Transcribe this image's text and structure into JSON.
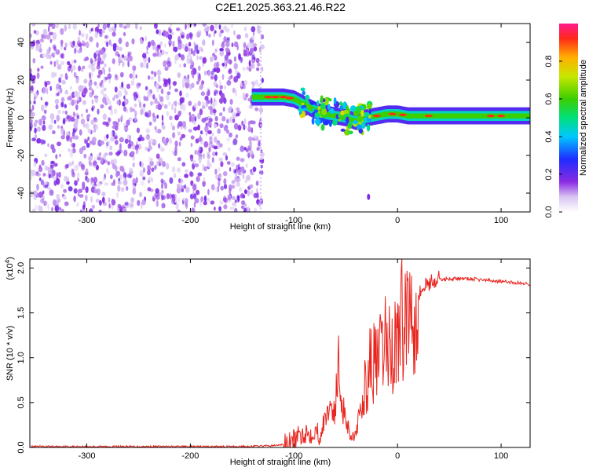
{
  "title": "C2E1.2025.363.21.46.R22",
  "chart_data": [
    {
      "type": "heatmap",
      "xlabel": "Height of straight line (km)",
      "ylabel": "Frequency (Hz)",
      "xlim": [
        -355,
        128
      ],
      "ylim": [
        -50,
        50
      ],
      "xticks": [
        -300,
        -200,
        -100,
        0,
        100
      ],
      "xtick_labels": [
        "-300",
        "-200",
        "-100",
        "0",
        "100"
      ],
      "yticks": [
        -40,
        -20,
        0,
        20,
        40
      ],
      "ytick_labels": [
        "-40",
        "-20",
        "0",
        "20",
        "40"
      ],
      "noise_region_x": [
        -355,
        -130
      ],
      "ridge": {
        "x": [
          -140,
          -130,
          -120,
          -110,
          -100,
          -90,
          -80,
          -70,
          -60,
          -50,
          -40,
          -30,
          -20,
          -10,
          0,
          10,
          30,
          60,
          90,
          128
        ],
        "freq": [
          11,
          11,
          11,
          11,
          10,
          7,
          4,
          2,
          1,
          0,
          -2,
          0,
          1,
          2,
          2,
          1,
          1,
          1,
          1,
          1
        ]
      },
      "isolated_blob": {
        "x": -28,
        "freq": -42
      },
      "colorbar": {
        "label": "Normalized spectral amplitude",
        "ticks": [
          0.0,
          0.2,
          0.4,
          0.6,
          0.8
        ],
        "tick_labels": [
          "0.0",
          "0.2",
          "0.4",
          "0.6",
          "0.8"
        ],
        "range": [
          0,
          1
        ]
      },
      "grid": false
    },
    {
      "type": "line",
      "xlabel": "Height of straight line (km)",
      "ylabel": "SNR (10 * v/v)",
      "scale_label": "(x10",
      "scale_exponent": "4",
      "scale_suffix": ")",
      "xlim": [
        -355,
        128
      ],
      "ylim": [
        0,
        2.1
      ],
      "xticks": [
        -300,
        -200,
        -100,
        0,
        100
      ],
      "xtick_labels": [
        "-300",
        "-200",
        "-100",
        "0",
        "100"
      ],
      "yticks": [
        0.0,
        0.5,
        1.0,
        1.5,
        2.0
      ],
      "ytick_labels": [
        "0.0",
        "0.5",
        "1.0",
        "1.5",
        "2.0"
      ],
      "series": [
        {
          "color": "#e8251f",
          "x": [
            -355,
            -300,
            -250,
            -200,
            -150,
            -120,
            -105,
            -95,
            -90,
            -85,
            -80,
            -75,
            -70,
            -65,
            -60,
            -57,
            -55,
            -50,
            -45,
            -40,
            -35,
            -30,
            -25,
            -20,
            -15,
            -10,
            -5,
            0,
            5,
            10,
            15,
            20,
            25,
            30,
            40,
            50,
            60,
            70,
            80,
            90,
            100,
            110,
            120,
            128
          ],
          "y": [
            0.01,
            0.01,
            0.01,
            0.01,
            0.01,
            0.02,
            0.04,
            0.12,
            0.17,
            0.15,
            0.2,
            0.14,
            0.3,
            0.48,
            0.42,
            0.9,
            0.65,
            0.32,
            0.13,
            0.13,
            0.45,
            0.75,
            0.98,
            0.9,
            1.05,
            1.2,
            1.05,
            1.25,
            1.45,
            1.55,
            1.6,
            1.7,
            1.78,
            1.84,
            1.87,
            1.88,
            1.88,
            1.88,
            1.87,
            1.86,
            1.85,
            1.84,
            1.83,
            1.82
          ]
        }
      ],
      "grid": false
    }
  ]
}
